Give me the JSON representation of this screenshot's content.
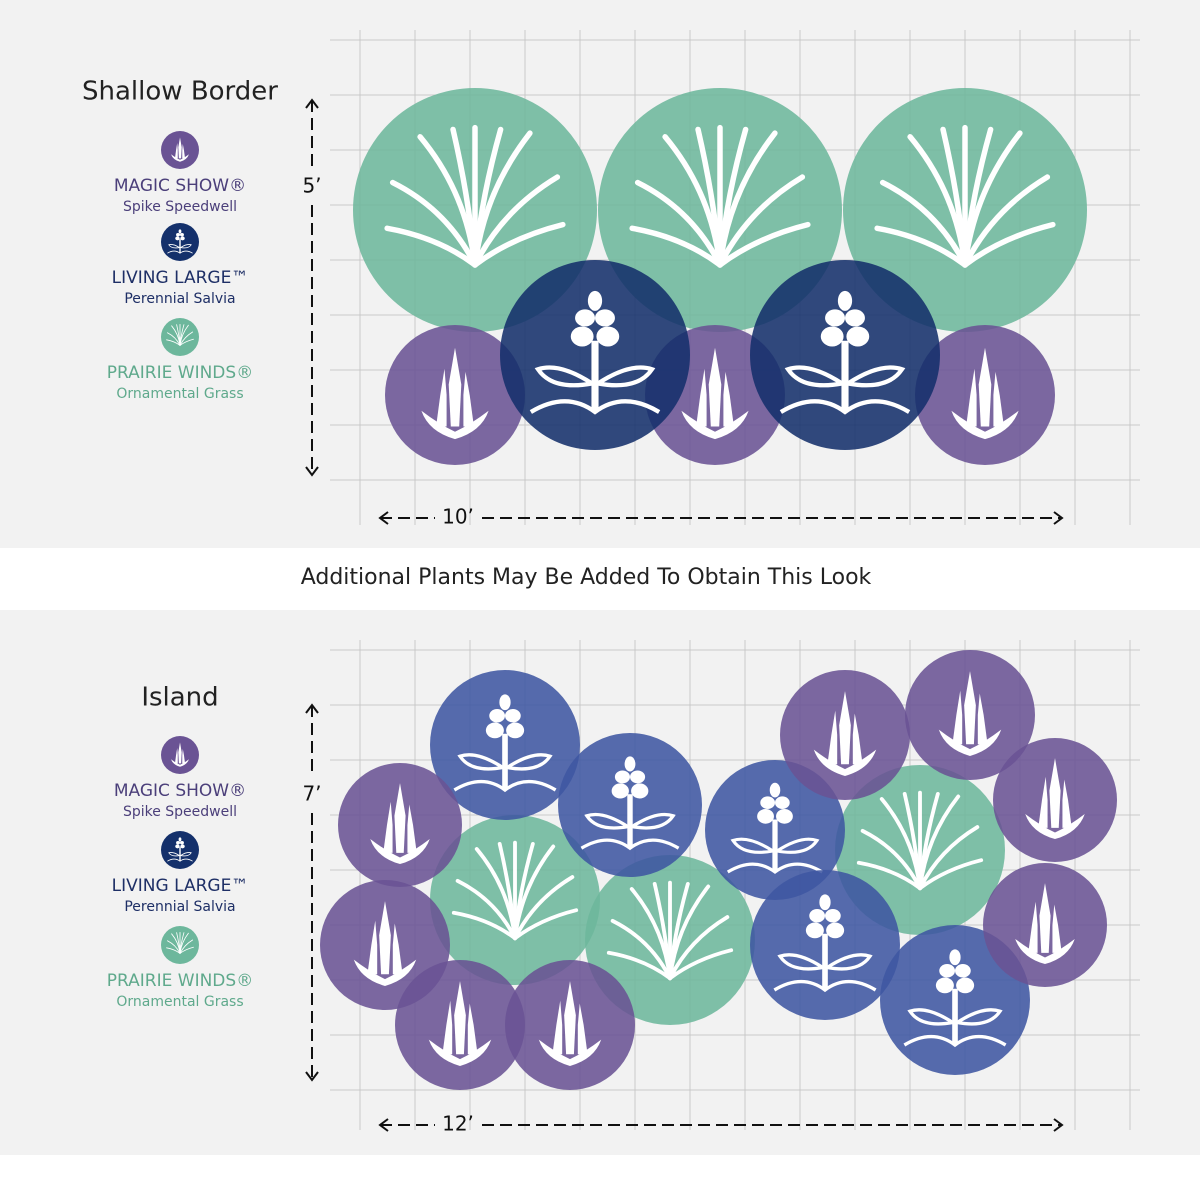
{
  "panels": [
    {
      "title": "Shallow Border",
      "legend": [
        {
          "name": "MAGIC SHOW®",
          "sub": "Spike Speedwell"
        },
        {
          "name": "LIVING LARGE™",
          "sub": "Perennial Salvia"
        },
        {
          "name": "PRAIRIE WINDS®",
          "sub": "Ornamental Grass"
        }
      ],
      "height_label": "5’",
      "width_label": "10’"
    },
    {
      "title": "Island",
      "legend": [
        {
          "name": "MAGIC SHOW®",
          "sub": "Spike Speedwell"
        },
        {
          "name": "LIVING LARGE™",
          "sub": "Perennial Salvia"
        },
        {
          "name": "PRAIRIE WINDS®",
          "sub": "Ornamental Grass"
        }
      ],
      "height_label": "7’",
      "width_label": "12’"
    }
  ],
  "banner": "Additional Plants May Be Added To Obtain This Look"
}
